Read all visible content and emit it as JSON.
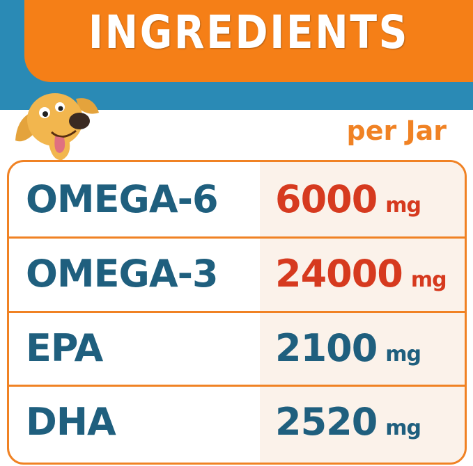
{
  "header": {
    "title": "INGREDIENTS",
    "subtitle": "per Jar"
  },
  "colors": {
    "orange": "#f57f17",
    "blue": "#2a8ab5",
    "label": "#1f5f7e",
    "highlight": "#d63a1f"
  },
  "rows": [
    {
      "name": "OMEGA-6",
      "amount": "6000",
      "unit": "mg",
      "color": "#d63a1f"
    },
    {
      "name": "OMEGA-3",
      "amount": "24000",
      "unit": "mg",
      "color": "#d63a1f"
    },
    {
      "name": "EPA",
      "amount": "2100",
      "unit": "mg",
      "color": "#1f5f7e"
    },
    {
      "name": "DHA",
      "amount": "2520",
      "unit": "mg",
      "color": "#1f5f7e"
    }
  ]
}
